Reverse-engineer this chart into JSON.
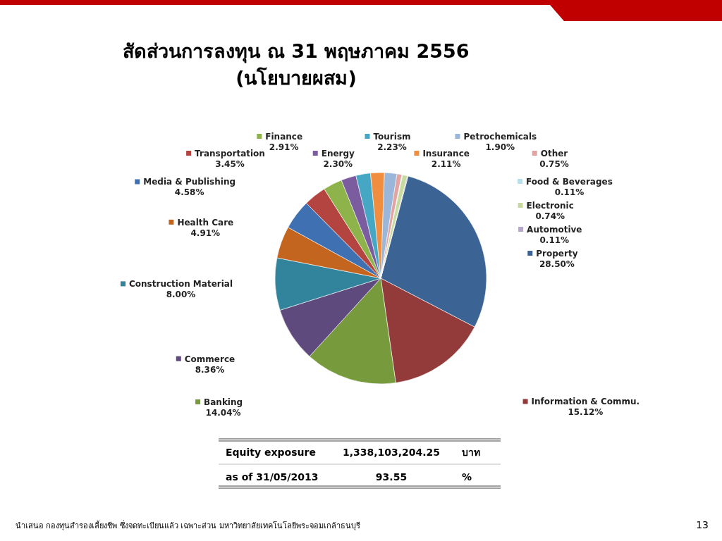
{
  "chart_data": {
    "type": "pie",
    "title": "สัดส่วนการลงทุน ณ 31 พฤษภาคม 2556",
    "subtitle": "(นโยบายผสม)",
    "legend": "right",
    "categories": [
      "Property",
      "Information & Commu.",
      "Banking",
      "Commerce",
      "Construction Material",
      "Health Care",
      "Media & Publishing",
      "Transportation",
      "Finance",
      "Energy",
      "Tourism",
      "Insurance",
      "Petrochemicals",
      "Other",
      "Food & Beverages",
      "Electronic",
      "Automotive"
    ],
    "values": [
      28.5,
      15.12,
      14.04,
      8.36,
      8.0,
      4.91,
      4.58,
      3.45,
      2.91,
      2.3,
      2.23,
      2.11,
      1.9,
      0.75,
      0.11,
      0.74,
      0.11
    ],
    "value_labels": [
      "28.50%",
      "15.12%",
      "14.04%",
      "8.36%",
      "8.00%",
      "4.91%",
      "4.58%",
      "3.45%",
      "2.91%",
      "2.30%",
      "2.23%",
      "2.11%",
      "1.90%",
      "0.75%",
      "0.11%",
      "0.74%",
      "0.11%"
    ],
    "colors": [
      "#3b6394",
      "#923b3a",
      "#779a3c",
      "#5e4a7c",
      "#31849b",
      "#c3651f",
      "#3e70b2",
      "#b4443f",
      "#8db34a",
      "#7b5c9e",
      "#45a7c4",
      "#f08d3e",
      "#9ab6d8",
      "#e3a3a1",
      "#b8dfe9",
      "#c8db9f",
      "#b6a5cc"
    ],
    "annotations": [
      "Equity exposure",
      "1,338,103,204.25",
      "บาท",
      "as of  31/05/2013",
      "93.55",
      "%",
      "นำเสนอ กองทุนสำรองเลี้ยงชีพ ซึ่งจดทะเบียนแล้ว เฉพาะส่วน มหาวิทยาลัยเทคโนโลยีพระจอมเกล้าธนบุรี",
      "13"
    ]
  }
}
